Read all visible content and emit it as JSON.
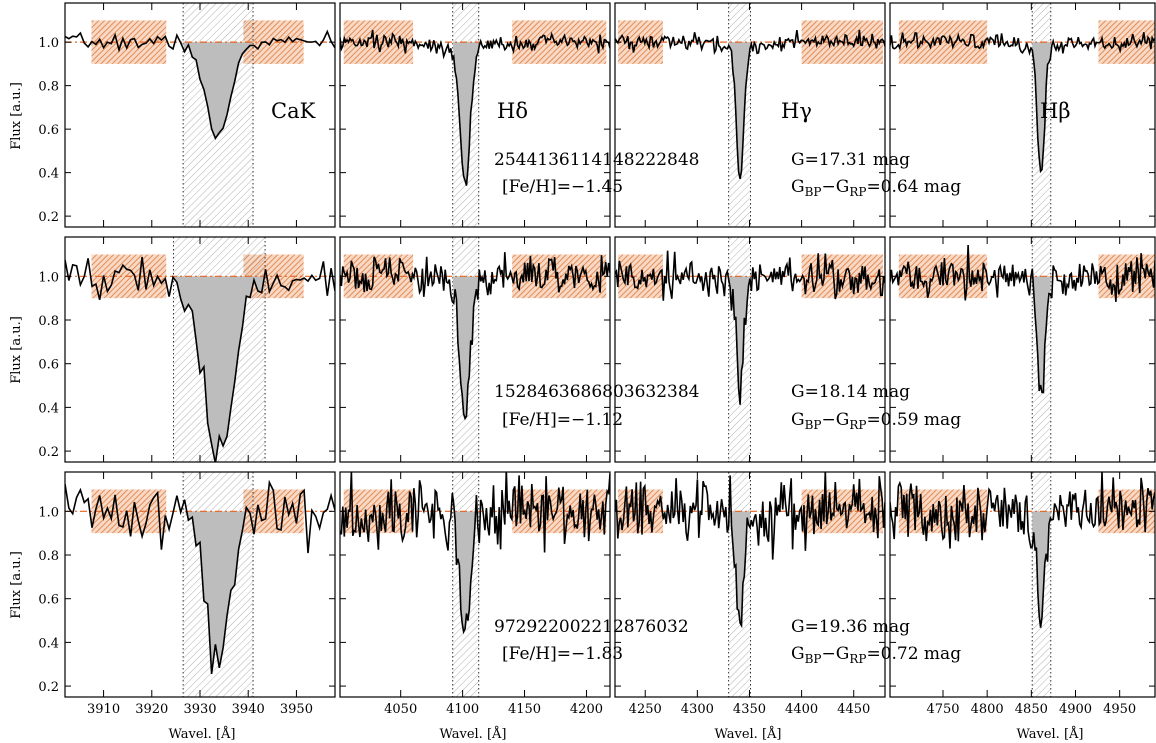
{
  "figure": {
    "ylabel": "Flux [a.u.]",
    "xlabel": "Wavel. [Å]",
    "line_labels": [
      "CaK",
      "Hδ",
      "Hγ",
      "Hβ"
    ]
  },
  "colors": {
    "spectrum": "#000000",
    "line_fill": "#bdbdbd",
    "continuum_band": "#e8854c",
    "continuum_line": "#e8631f",
    "window_hatch": "#9a9a9a"
  },
  "chart_data": {
    "type": "line",
    "ylim": [
      0.15,
      1.18
    ],
    "yticks": [
      0.2,
      0.4,
      0.6,
      0.8,
      1.0
    ],
    "yticklabels": [
      "0.2",
      "0.4",
      "0.6",
      "0.8",
      "1.0"
    ],
    "continuum_level": 1.0,
    "band_ylim": [
      0.9,
      1.1
    ],
    "subplots": [
      {
        "line": "CaK",
        "xlim": [
          3902,
          3958
        ],
        "xticks": [
          3910,
          3920,
          3930,
          3940,
          3950
        ],
        "continuum_bands": [
          [
            3907.5,
            3923
          ],
          [
            3939,
            3951.5
          ]
        ],
        "window": [
          3926.5,
          3941
        ],
        "center": 3933.7,
        "width": 2.5
      },
      {
        "line": "Hδ",
        "xlim": [
          4001,
          4219
        ],
        "xticks": [
          4050,
          4100,
          4150,
          4200
        ],
        "continuum_bands": [
          [
            4004,
            4060
          ],
          [
            4140,
            4216
          ]
        ],
        "window": [
          4092,
          4113
        ],
        "center": 4102,
        "width": 4
      },
      {
        "line": "Hγ",
        "xlim": [
          4221,
          4480
        ],
        "xticks": [
          4250,
          4300,
          4350,
          4400,
          4450
        ],
        "continuum_bands": [
          [
            4224,
            4267
          ],
          [
            4400,
            4478
          ]
        ],
        "window": [
          4330,
          4351
        ],
        "center": 4341,
        "width": 3.5
      },
      {
        "line": "Hβ",
        "xlim": [
          4690,
          4990
        ],
        "xticks": [
          4750,
          4800,
          4850,
          4900,
          4950
        ],
        "continuum_bands": [
          [
            4700,
            4800
          ],
          [
            4926,
            4990
          ]
        ],
        "window": [
          4851,
          4872
        ],
        "center": 4861,
        "width": 4
      }
    ],
    "rows": [
      {
        "source_id": "2544136114148222848",
        "feh": "[Fe/H]=−1.45",
        "gmag": "G=17.31 mag",
        "color_pre": "G",
        "color_sub1": "BP",
        "color_mid": "−G",
        "color_sub2": "RP",
        "color_post": "=0.64 mag",
        "noise": 0.018,
        "seed": 7,
        "depths": [
          0.45,
          0.62,
          0.6,
          0.58
        ],
        "widths_scale": [
          1.0,
          1.0,
          1.0,
          1.0
        ],
        "windows": [
          [
            3926.5,
            3941
          ],
          [
            4092,
            4113
          ],
          [
            4330,
            4351
          ],
          [
            4851,
            4872
          ]
        ]
      },
      {
        "source_id": "1528463686803632384",
        "feh": "[Fe/H]=−1.12",
        "gmag": "G=18.14 mag",
        "color_pre": "G",
        "color_sub1": "BP",
        "color_mid": "−G",
        "color_sub2": "RP",
        "color_post": "=0.59 mag",
        "noise": 0.045,
        "seed": 19,
        "depths": [
          0.8,
          0.6,
          0.5,
          0.54
        ],
        "widths_scale": [
          1.3,
          1.0,
          1.0,
          1.0
        ],
        "windows": [
          [
            3924.5,
            3943.5
          ],
          [
            4092,
            4113
          ],
          [
            4330,
            4351
          ],
          [
            4851,
            4872
          ]
        ]
      },
      {
        "source_id": "972922002212876032",
        "feh": "[Fe/H]=−1.83",
        "gmag": "G=19.36 mag",
        "color_pre": "G",
        "color_sub1": "BP",
        "color_mid": "−G",
        "color_sub2": "RP",
        "color_post": "=0.72 mag",
        "noise": 0.075,
        "seed": 41,
        "depths": [
          0.71,
          0.53,
          0.46,
          0.47
        ],
        "widths_scale": [
          1.0,
          1.0,
          1.0,
          1.0
        ],
        "windows": [
          [
            3926.5,
            3941
          ],
          [
            4092,
            4113
          ],
          [
            4330,
            4351
          ],
          [
            4851,
            4872
          ]
        ]
      }
    ]
  }
}
